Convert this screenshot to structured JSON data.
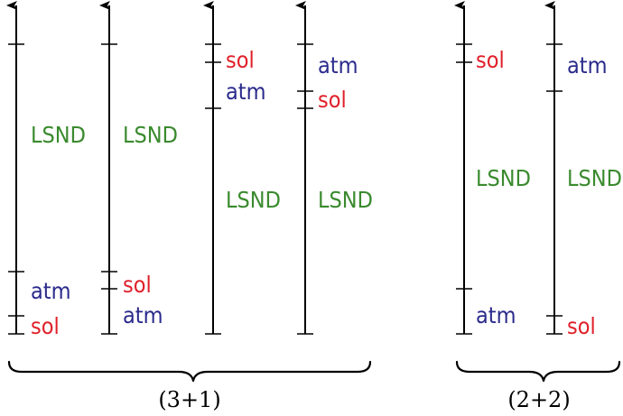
{
  "colors": {
    "sol": "#e0202a",
    "atm": "#2b2b8c",
    "lsnd": "#3a8a2e",
    "axis": "#000000"
  },
  "labels": {
    "sol": "sol",
    "atm": "atm",
    "lsnd": "LSND"
  },
  "groups": [
    {
      "label": "(3+1)"
    },
    {
      "label": "(2+2)"
    }
  ]
}
